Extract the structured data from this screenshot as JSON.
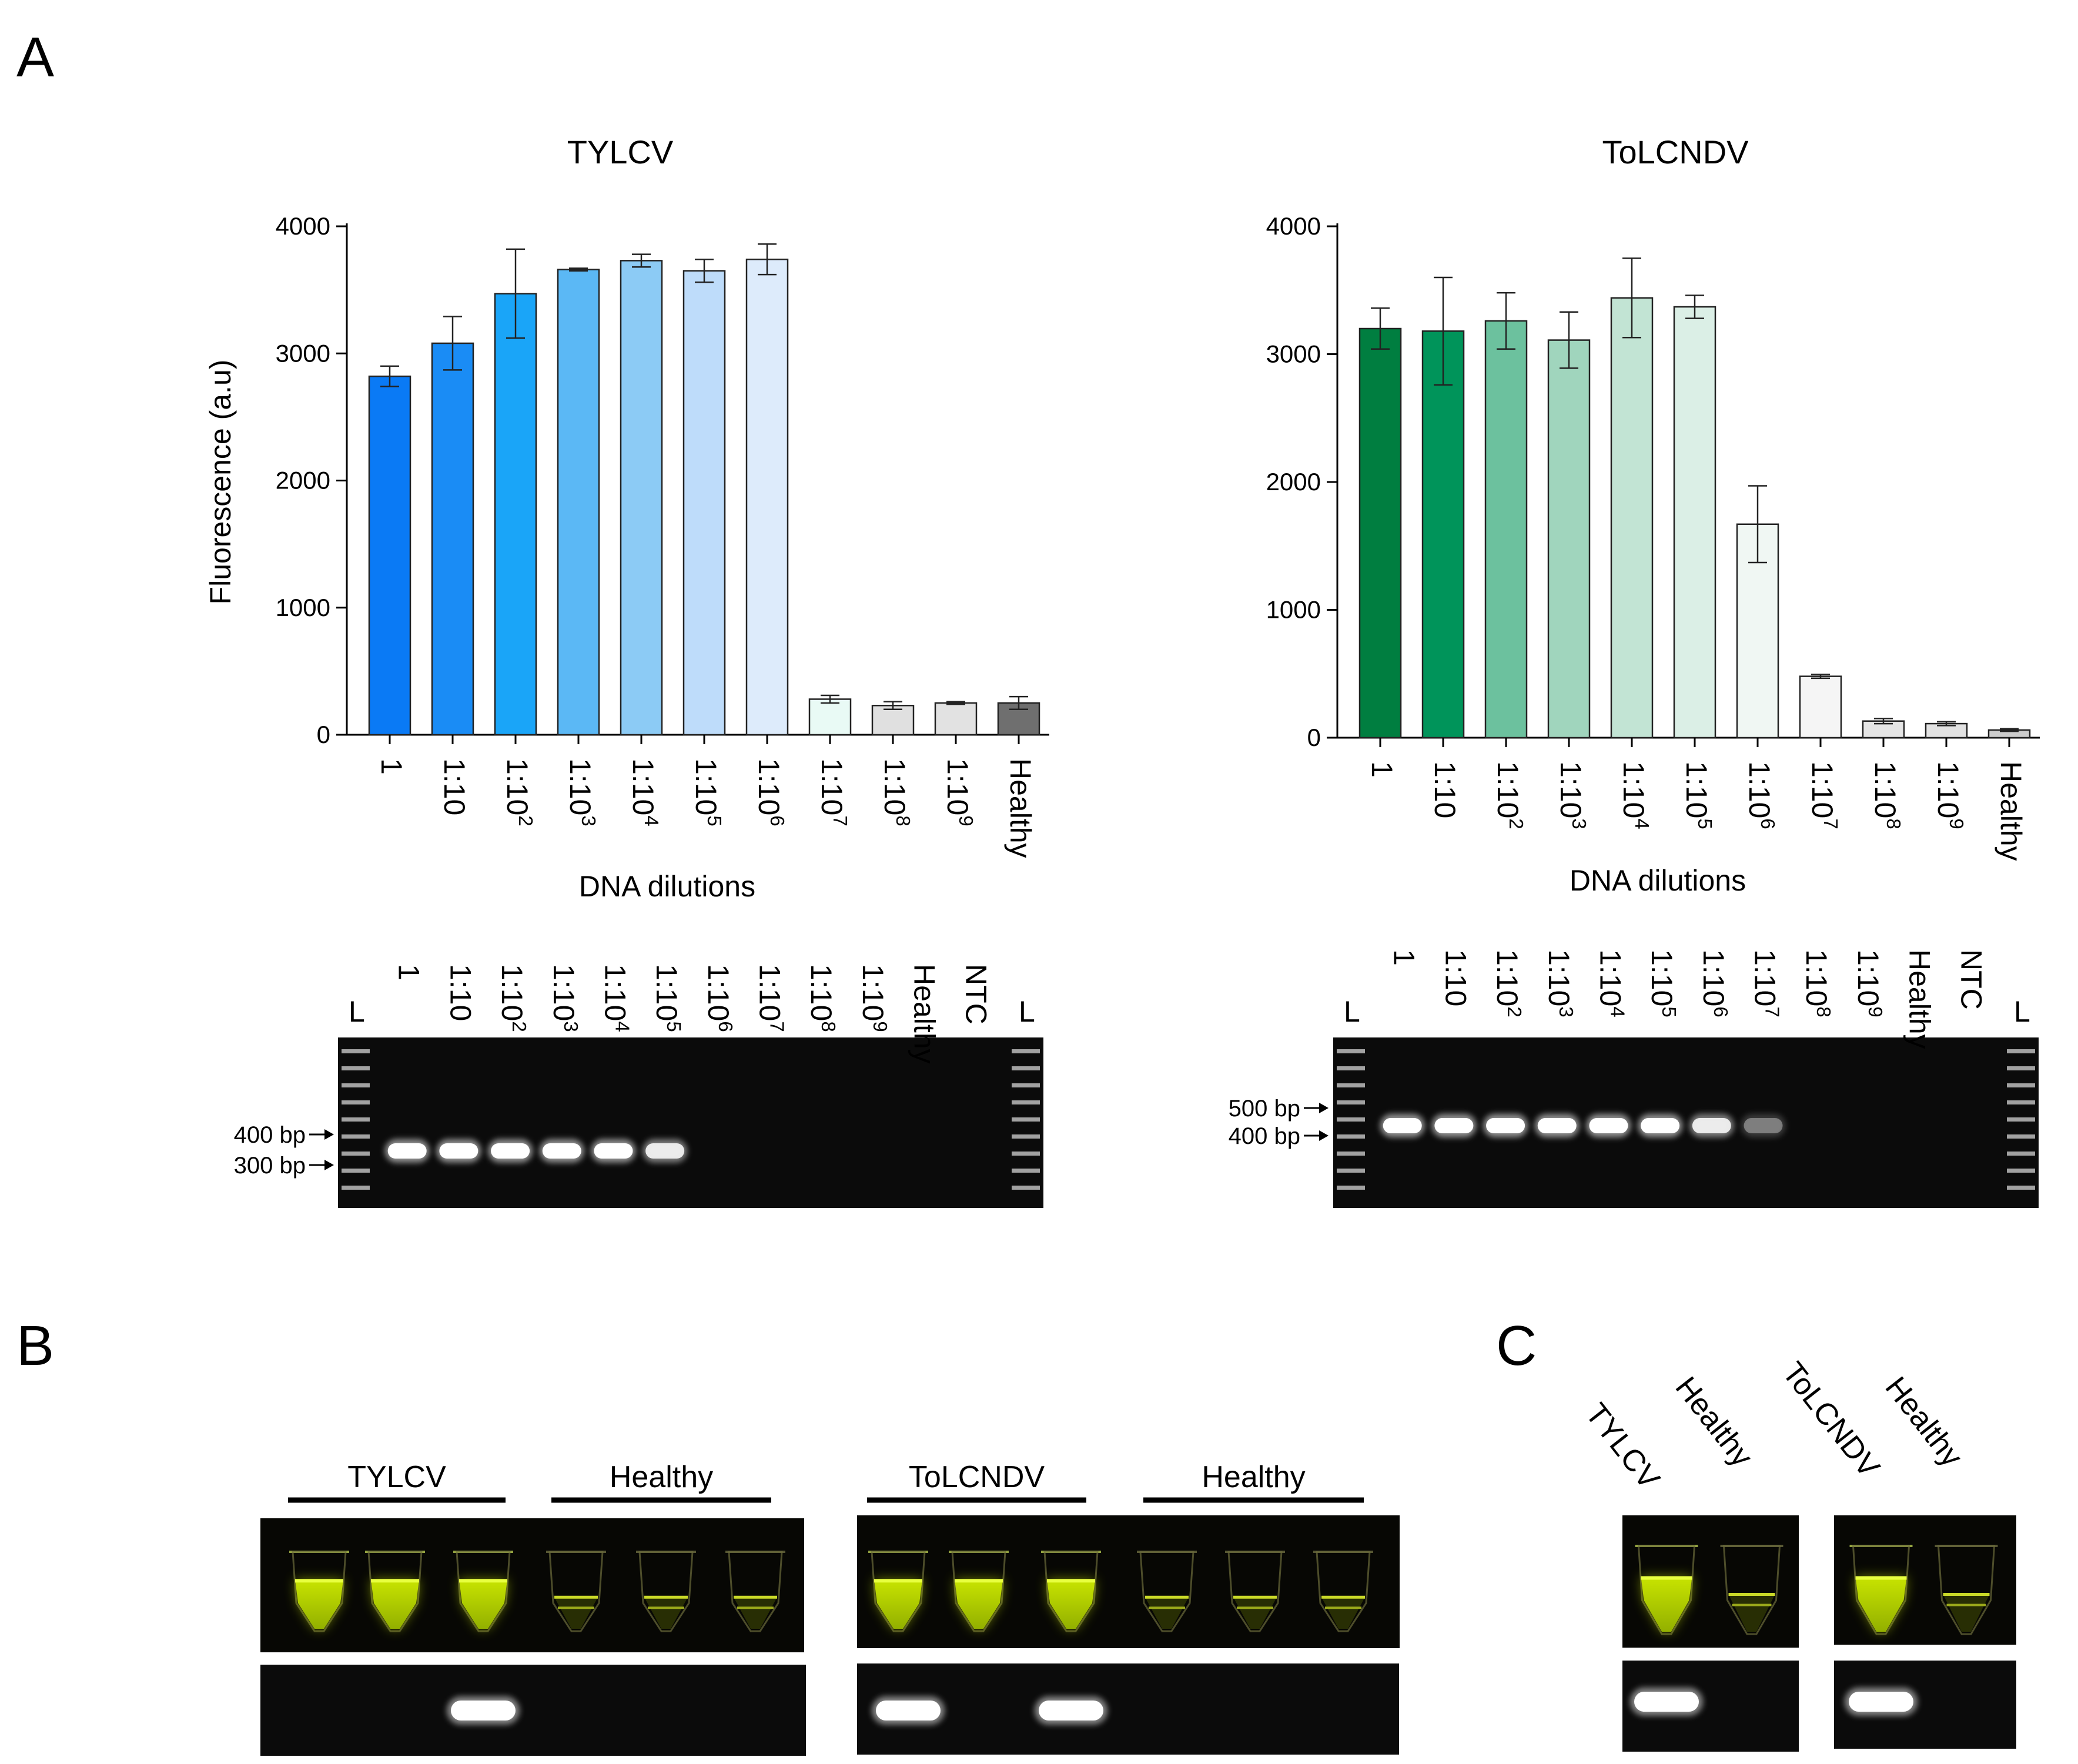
{
  "panels": {
    "a": "A",
    "b": "B",
    "c": "C"
  },
  "chart_data": [
    {
      "type": "bar",
      "title": "TYLCV",
      "xlabel": "DNA dilutions",
      "ylabel": "Fluorescence (a.u)",
      "ylim": [
        0,
        4000
      ],
      "yticks": [
        "0",
        "1000",
        "2000",
        "3000",
        "4000"
      ],
      "categories": [
        "1",
        "1:10",
        "1:10^2",
        "1:10^3",
        "1:10^4",
        "1:10^5",
        "1:10^6",
        "1:10^7",
        "1:10^8",
        "1:10^9",
        "Healthy"
      ],
      "values": [
        2820,
        3080,
        3470,
        3660,
        3730,
        3650,
        3740,
        280,
        230,
        250,
        250
      ],
      "errors": [
        80,
        210,
        350,
        10,
        50,
        90,
        120,
        30,
        30,
        10,
        50
      ],
      "colors": [
        "#0a7af5",
        "#1a8cf5",
        "#1aa5f8",
        "#5bb8f5",
        "#8ccbf5",
        "#bedcfa",
        "#ddebfb",
        "#e9faf5",
        "#e0e0e0",
        "#e2e2e2",
        "#6f6f6f"
      ]
    },
    {
      "type": "bar",
      "title": "ToLCNDV",
      "xlabel": "DNA dilutions",
      "ylabel": "",
      "ylim": [
        0,
        4000
      ],
      "yticks": [
        "0",
        "1000",
        "2000",
        "3000",
        "4000"
      ],
      "categories": [
        "1",
        "1:10",
        "1:10^2",
        "1:10^3",
        "1:10^4",
        "1:10^5",
        "1:10^6",
        "1:10^7",
        "1:10^8",
        "1:10^9",
        "Healthy"
      ],
      "values": [
        3200,
        3180,
        3260,
        3110,
        3440,
        3370,
        1670,
        480,
        130,
        110,
        60
      ],
      "errors": [
        160,
        420,
        220,
        220,
        310,
        90,
        300,
        15,
        20,
        15,
        10
      ],
      "colors": [
        "#007e40",
        "#00945a",
        "#6cc19e",
        "#a0d5bd",
        "#c2e4d4",
        "#dbefe6",
        "#f0f7f3",
        "#f5f5f5",
        "#e5e5e5",
        "#e2e2e2",
        "#cccccc"
      ]
    }
  ],
  "gels": {
    "tylcv": {
      "lanes": [
        "L",
        "1",
        "1:10",
        "1:10^2",
        "1:10^3",
        "1:10^4",
        "1:10^5",
        "1:10^6",
        "1:10^7",
        "1:10^8",
        "1:10^9",
        "Healthy",
        "NTC",
        "L"
      ],
      "markers": [
        "400 bp",
        "300 bp"
      ],
      "band_intensity": [
        0,
        1,
        1,
        1,
        1,
        1,
        0.85,
        0,
        0,
        0,
        0,
        0,
        0,
        0
      ]
    },
    "tolcndv": {
      "lanes": [
        "L",
        "1",
        "1:10",
        "1:10^2",
        "1:10^3",
        "1:10^4",
        "1:10^5",
        "1:10^6",
        "1:10^7",
        "1:10^8",
        "1:10^9",
        "Healthy",
        "NTC",
        "L"
      ],
      "markers": [
        "500 bp",
        "400 bp"
      ],
      "band_intensity": [
        0,
        1,
        1,
        1,
        1,
        1,
        1,
        0.85,
        0.35,
        0,
        0,
        0,
        0,
        0
      ]
    }
  },
  "panel_b": {
    "groups": [
      "TYLCV",
      "Healthy",
      "ToLCNDV",
      "Healthy"
    ],
    "tube_states": [
      "positive",
      "positive",
      "positive",
      "negative",
      "negative",
      "negative",
      "positive",
      "positive",
      "positive",
      "negative",
      "negative",
      "negative"
    ],
    "gel_bands": [
      0,
      0,
      1,
      0,
      0,
      0,
      1,
      0,
      1,
      0,
      0,
      0
    ]
  },
  "panel_c": {
    "labels": [
      "TYLCV",
      "Healthy",
      "ToLCNDV",
      "Healthy"
    ],
    "tube_states": [
      "positive",
      "negative",
      "positive",
      "negative"
    ],
    "gel_bands": [
      1,
      0,
      1,
      0
    ]
  }
}
